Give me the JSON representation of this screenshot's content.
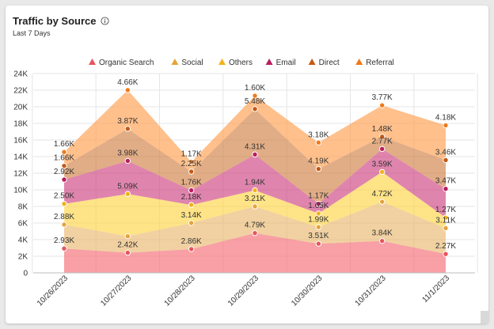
{
  "card": {
    "title": "Traffic by Source",
    "subtitle": "Last 7 Days"
  },
  "chart_data": {
    "type": "area",
    "stacked": true,
    "categories": [
      "10/26/2023",
      "10/27/2023",
      "10/28/2023",
      "10/29/2023",
      "10/30/2023",
      "10/31/2023",
      "11/1/2023"
    ],
    "ylim": [
      0,
      24000
    ],
    "yticks": [
      0,
      2000,
      4000,
      6000,
      8000,
      10000,
      12000,
      14000,
      16000,
      18000,
      20000,
      22000,
      24000
    ],
    "ytick_labels": [
      "0",
      "2K",
      "4K",
      "6K",
      "8K",
      "10K",
      "12K",
      "14K",
      "16K",
      "18K",
      "20K",
      "22K",
      "24K"
    ],
    "grid": true,
    "legend_position": "top",
    "series": [
      {
        "name": "Organic Search",
        "color": "#f4666d",
        "marker": "#e8545c",
        "values": [
          2930,
          2420,
          2860,
          4790,
          3510,
          3840,
          2270
        ],
        "labels": [
          "2.93K",
          "2.42K",
          "2.86K",
          "4.79K",
          "3.51K",
          "3.84K",
          "2.27K"
        ]
      },
      {
        "name": "Social",
        "color": "#e9b467",
        "marker": "#e8a33b",
        "values": [
          2880,
          1990,
          3140,
          3210,
          1990,
          4720,
          3110
        ],
        "labels": [
          "2.88K",
          "",
          "3.14K",
          "3.21K",
          "1.99K",
          "4.72K",
          "3.11K"
        ]
      },
      {
        "name": "Others",
        "color": "#fdd23e",
        "marker": "#f2b21b",
        "values": [
          2500,
          5090,
          2180,
          1940,
          1650,
          3590,
          1270
        ],
        "labels": [
          "2.50K",
          "5.09K",
          "2.18K",
          "1.94K",
          "1.65K",
          "3.59K",
          "1.27K"
        ]
      },
      {
        "name": "Email",
        "color": "#cc3a7b",
        "marker": "#b81e60",
        "values": [
          2920,
          3980,
          1760,
          4310,
          1170,
          2770,
          3470
        ],
        "labels": [
          "2.92K",
          "3.98K",
          "1.76K",
          "4.31K",
          "1.17K",
          "2.77K",
          "3.47K"
        ]
      },
      {
        "name": "Direct",
        "color": "#cf7a3c",
        "marker": "#c45a14",
        "values": [
          1660,
          3870,
          2250,
          5480,
          4190,
          1480,
          3460
        ],
        "labels": [
          "1.66K",
          "3.87K",
          "2.25K",
          "5.48K",
          "4.19K",
          "1.48K",
          "3.46K"
        ]
      },
      {
        "name": "Referral",
        "color": "#ff9a45",
        "marker": "#f07a1a",
        "values": [
          1660,
          4660,
          1170,
          1600,
          3180,
          3770,
          4180
        ],
        "labels": [
          "1.66K",
          "4.66K",
          "1.17K",
          "1.60K",
          "3.18K",
          "3.77K",
          "4.18K"
        ]
      }
    ]
  }
}
